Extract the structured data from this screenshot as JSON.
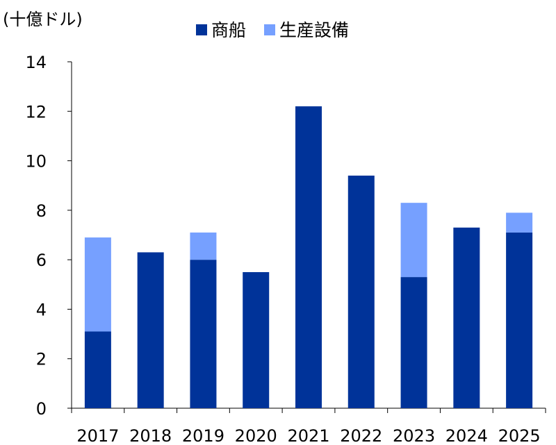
{
  "chart_data": {
    "type": "bar",
    "stacked": true,
    "unit_label": "(十億ドル)",
    "categories": [
      "2017",
      "2018",
      "2019",
      "2020",
      "2021",
      "2022",
      "2023",
      "2024",
      "2025"
    ],
    "series": [
      {
        "name": "商船",
        "color": "#003399",
        "values": [
          3.1,
          6.3,
          6.0,
          5.5,
          12.2,
          9.4,
          5.3,
          7.3,
          7.1
        ]
      },
      {
        "name": "生産設備",
        "color": "#76A0FF",
        "values": [
          3.8,
          0,
          1.1,
          0,
          0,
          0,
          3.0,
          0,
          0.8
        ]
      }
    ],
    "ylim": [
      0,
      14
    ],
    "yticks": [
      "0",
      "2",
      "4",
      "6",
      "8",
      "10",
      "12",
      "14"
    ],
    "grid": false,
    "legend": "top"
  }
}
